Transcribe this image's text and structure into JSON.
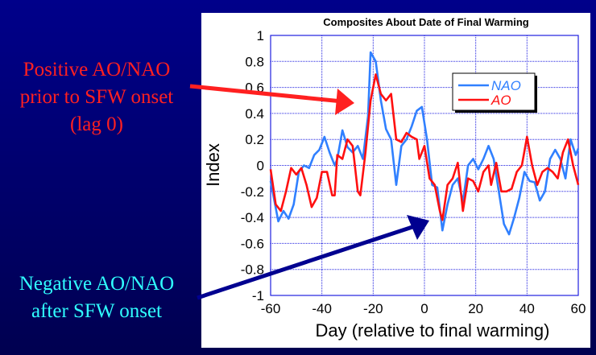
{
  "annotations": {
    "positive": [
      "Positive AO/NAO",
      "prior to SFW onset",
      "(lag 0)"
    ],
    "negative": [
      "Negative AO/NAO",
      "after SFW onset"
    ]
  },
  "colors": {
    "nao": "#3080ff",
    "ao": "#ff1010",
    "positive_text": "#ff2020",
    "negative_text": "#30ffff",
    "arrow_neg": "#000090",
    "grid": "#2020e0"
  },
  "chart_data": {
    "type": "line",
    "title": "Composites About Date of Final Warming",
    "xlabel": "Day (relative to final warming)",
    "ylabel": "Index",
    "xlim": [
      -60,
      60
    ],
    "ylim": [
      -1,
      1
    ],
    "xticks": [
      -60,
      -40,
      -20,
      0,
      20,
      40,
      60
    ],
    "yticks": [
      -1,
      -0.8,
      -0.6,
      -0.4,
      -0.2,
      0,
      0.2,
      0.4,
      0.6,
      0.8,
      1
    ],
    "grid": true,
    "legend": "top-right",
    "series": [
      {
        "name": "NAO",
        "x": [
          -60,
          -57,
          -55,
          -53,
          -51,
          -49,
          -47,
          -45,
          -43,
          -41,
          -39,
          -37,
          -35,
          -34,
          -32,
          -30,
          -28,
          -26,
          -24,
          -22,
          -21,
          -19,
          -17,
          -15,
          -13,
          -11,
          -9,
          -7,
          -5,
          -3,
          -1,
          1,
          3,
          5,
          7,
          9,
          11,
          13,
          15,
          17,
          19,
          21,
          23,
          25,
          27,
          29,
          31,
          33,
          35,
          37,
          39,
          41,
          43,
          45,
          47,
          49,
          51,
          53,
          55,
          57,
          59,
          60
        ],
        "values": [
          -0.12,
          -0.43,
          -0.35,
          -0.41,
          -0.3,
          -0.05,
          0,
          -0.02,
          0.08,
          0.12,
          0.22,
          0.1,
          0,
          0.05,
          0.27,
          0.14,
          0.1,
          0.15,
          0.05,
          0.38,
          0.87,
          0.8,
          0.5,
          0.28,
          0.2,
          -0.15,
          0.15,
          0.2,
          0.3,
          0.42,
          0.45,
          0.2,
          -0.15,
          -0.17,
          -0.5,
          -0.3,
          -0.15,
          -0.1,
          -0.28,
          0,
          0.05,
          -0.03,
          0.05,
          0.15,
          0.05,
          -0.2,
          -0.45,
          -0.53,
          -0.4,
          -0.25,
          -0.05,
          -0.12,
          -0.13,
          -0.27,
          -0.2,
          0.05,
          0.12,
          0.05,
          -0.1,
          0.2,
          0.08,
          0.13
        ]
      },
      {
        "name": "AO",
        "x": [
          -60,
          -58,
          -56,
          -54,
          -52,
          -50,
          -48,
          -46,
          -44,
          -42,
          -40,
          -38,
          -36,
          -35,
          -34,
          -32,
          -30,
          -28,
          -26,
          -25,
          -23,
          -21,
          -19,
          -17,
          -15,
          -13,
          -11,
          -9,
          -7,
          -5,
          -3,
          -2,
          0,
          2,
          4,
          6,
          7,
          9,
          11,
          13,
          15,
          17,
          19,
          21,
          23,
          25,
          26,
          28,
          30,
          32,
          34,
          36,
          38,
          40,
          42,
          44,
          46,
          48,
          50,
          52,
          54,
          56,
          58,
          60
        ],
        "values": [
          -0.03,
          -0.3,
          -0.35,
          -0.2,
          -0.02,
          -0.07,
          -0.02,
          -0.15,
          -0.32,
          -0.25,
          -0.05,
          -0.05,
          -0.23,
          -0.23,
          0.08,
          0.05,
          0.2,
          0.15,
          -0.2,
          -0.23,
          0.1,
          0.5,
          0.7,
          0.55,
          0.5,
          0.55,
          0.2,
          0.18,
          0.25,
          0.22,
          0.2,
          0.05,
          0.15,
          -0.1,
          -0.15,
          -0.35,
          -0.42,
          -0.15,
          -0.1,
          0.02,
          -0.35,
          -0.1,
          -0.12,
          -0.2,
          -0.05,
          0,
          -0.15,
          0.02,
          -0.2,
          -0.2,
          -0.18,
          -0.05,
          0,
          0.22,
          0,
          -0.15,
          -0.05,
          -0.02,
          -0.05,
          -0.1,
          0.1,
          0.2,
          0,
          -0.15
        ]
      }
    ]
  }
}
